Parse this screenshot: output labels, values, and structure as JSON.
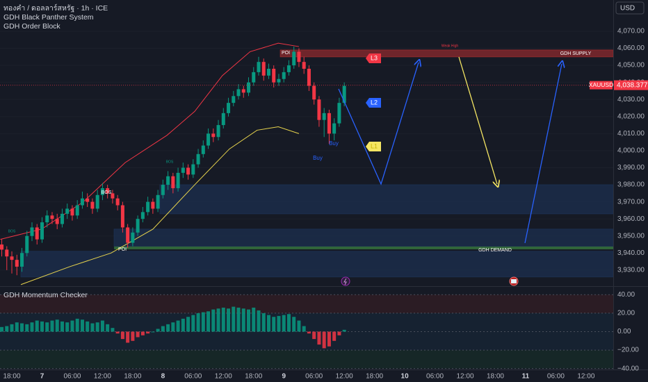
{
  "chart_data": [
    {
      "type": "candlestick",
      "title": "ทองคำ / ดอลลาร์สหรัฐ · 1h · ICE",
      "indicators": [
        "GDH Black Panther System",
        "GDH Order Block"
      ],
      "currency": "USD",
      "symbol": "XAUUSD",
      "x": [
        -2,
        -1,
        0,
        1,
        2,
        3,
        4,
        5,
        6,
        7,
        8,
        9,
        10,
        11,
        12,
        13,
        14,
        15,
        16,
        17,
        18,
        19,
        20,
        21,
        22,
        23,
        24,
        25,
        26,
        27,
        28,
        29,
        30,
        31,
        32,
        33,
        34,
        35,
        36,
        37,
        38,
        39,
        40,
        41,
        42,
        43,
        44,
        45,
        46,
        47,
        48,
        49,
        50,
        51,
        52,
        53,
        54,
        55,
        56,
        57,
        58,
        59,
        60,
        61,
        62,
        63,
        64,
        65,
        66
      ],
      "open": [
        3945,
        3942,
        3938,
        3936,
        3932,
        3940,
        3950,
        3955,
        3948,
        3958,
        3962,
        3960,
        3957,
        3963,
        3966,
        3962,
        3968,
        3972,
        3970,
        3966,
        3974,
        3978,
        3975,
        3972,
        3968,
        3955,
        3946,
        3952,
        3960,
        3964,
        3970,
        3966,
        3974,
        3980,
        3985,
        3978,
        3987,
        3990,
        3986,
        3992,
        3998,
        4003,
        4010,
        4008,
        4015,
        4022,
        4028,
        4032,
        4036,
        4034,
        4040,
        4046,
        4052,
        4044,
        4048,
        4040,
        4042,
        4046,
        4050,
        4058,
        4052,
        4048,
        4038,
        4030,
        4018,
        4022,
        4010,
        4016,
        4028
      ],
      "high": [
        3948,
        3944,
        3941,
        3939,
        3943,
        3953,
        3958,
        3957,
        3961,
        3965,
        3964,
        3963,
        3966,
        3969,
        3968,
        3971,
        3976,
        3975,
        3972,
        3977,
        3981,
        3980,
        3977,
        3974,
        3970,
        3957,
        3955,
        3962,
        3967,
        3973,
        3972,
        3977,
        3983,
        3988,
        3987,
        3990,
        3993,
        3992,
        3995,
        4001,
        4006,
        4013,
        4013,
        4018,
        4025,
        4031,
        4035,
        4039,
        4038,
        4043,
        4049,
        4055,
        4054,
        4051,
        4050,
        4045,
        4049,
        4053,
        4061,
        4060,
        4055,
        4050,
        4040,
        4032,
        4025,
        4024,
        4019,
        4031,
        4040
      ],
      "low": [
        3938,
        3930,
        3928,
        3927,
        3929,
        3938,
        3947,
        3945,
        3946,
        3955,
        3957,
        3954,
        3955,
        3960,
        3959,
        3960,
        3966,
        3967,
        3963,
        3964,
        3971,
        3972,
        3969,
        3965,
        3952,
        3943,
        3944,
        3950,
        3958,
        3962,
        3963,
        3964,
        3972,
        3977,
        3975,
        3976,
        3984,
        3983,
        3984,
        3990,
        3996,
        4001,
        4005,
        4006,
        4013,
        4020,
        4026,
        4030,
        4031,
        4032,
        4038,
        4044,
        4041,
        4042,
        4037,
        4038,
        4040,
        4044,
        4048,
        4049,
        4045,
        4035,
        4027,
        4014,
        4008,
        4004,
        4006,
        4014,
        4026
      ],
      "close": [
        3942,
        3938,
        3936,
        3932,
        3940,
        3950,
        3955,
        3948,
        3958,
        3962,
        3960,
        3957,
        3963,
        3966,
        3962,
        3968,
        3972,
        3970,
        3966,
        3974,
        3978,
        3975,
        3972,
        3968,
        3955,
        3946,
        3952,
        3960,
        3964,
        3970,
        3966,
        3974,
        3980,
        3985,
        3978,
        3987,
        3990,
        3986,
        3992,
        3998,
        4003,
        4010,
        4008,
        4015,
        4022,
        4028,
        4032,
        4036,
        4034,
        4040,
        4046,
        4052,
        4044,
        4048,
        4040,
        4042,
        4046,
        4050,
        4058,
        4052,
        4048,
        4038,
        4030,
        4018,
        4022,
        4010,
        4016,
        4028,
        4038
      ],
      "up_color": "#089981",
      "down_color": "#f23645",
      "xlim": [
        -2.35,
        119.4
      ],
      "xticks": [
        {
          "value": 0,
          "label": "18:00"
        },
        {
          "value": 6,
          "label": "7"
        },
        {
          "value": 12,
          "label": "06:00"
        },
        {
          "value": 18,
          "label": "12:00"
        },
        {
          "value": 24,
          "label": "18:00"
        },
        {
          "value": 30,
          "label": "8"
        },
        {
          "value": 36,
          "label": "06:00"
        },
        {
          "value": 42,
          "label": "12:00"
        },
        {
          "value": 48,
          "label": "18:00"
        },
        {
          "value": 54,
          "label": "9"
        },
        {
          "value": 60,
          "label": "06:00"
        },
        {
          "value": 66,
          "label": "12:00"
        },
        {
          "value": 72,
          "label": "18:00"
        },
        {
          "value": 78,
          "label": "10"
        },
        {
          "value": 84,
          "label": "06:00"
        },
        {
          "value": 90,
          "label": "12:00"
        },
        {
          "value": 96,
          "label": "18:00"
        },
        {
          "value": 102,
          "label": "11"
        },
        {
          "value": 108,
          "label": "06:00"
        },
        {
          "value": 114,
          "label": "12:00"
        }
      ],
      "ylim": [
        3921.4,
        4088.3
      ],
      "yticks": [
        {
          "value": 3930,
          "label": "3,930.00"
        },
        {
          "value": 3940,
          "label": "3,940.00"
        },
        {
          "value": 3950,
          "label": "3,950.00"
        },
        {
          "value": 3960,
          "label": "3,960.00"
        },
        {
          "value": 3970,
          "label": "3,970.00"
        },
        {
          "value": 3980,
          "label": "3,980.00"
        },
        {
          "value": 3990,
          "label": "3,990.00"
        },
        {
          "value": 4000,
          "label": "4,000.00"
        },
        {
          "value": 4010,
          "label": "4,010.00"
        },
        {
          "value": 4020,
          "label": "4,020.00"
        },
        {
          "value": 4030,
          "label": "4,030.00"
        },
        {
          "value": 4040,
          "label": "4,040.00"
        },
        {
          "value": 4050,
          "label": "4,050.00"
        },
        {
          "value": 4060,
          "label": "4,060.00"
        },
        {
          "value": 4070,
          "label": "4,070.00"
        }
      ],
      "grid": true,
      "last_price": {
        "value": 4038.377,
        "label": "4,038.377"
      },
      "bands": [
        {
          "color": "#f23645",
          "x": [
            -2.3,
            5.9,
            14.2,
            22.5,
            30.8,
            36.3,
            41.8,
            47.3,
            52.9,
            57
          ],
          "values": [
            3948,
            3954,
            3970,
            3993,
            4009,
            4023,
            4044,
            4058,
            4063,
            4061
          ]
        },
        {
          "color": "#e8d44d",
          "x": [
            1.8,
            11.5,
            19.7,
            28,
            36.3,
            43.2,
            48.7,
            52.9,
            57
          ],
          "values": [
            3921.5,
            3932,
            3940,
            3954,
            3980,
            4001,
            4012,
            4014,
            4010
          ]
        }
      ],
      "zones": [
        {
          "from": 29.4,
          "top": 3980,
          "bottom": 3963,
          "color": "#1c2f4f"
        },
        {
          "from": 20.3,
          "top": 3954,
          "bottom": 3944,
          "color": "#1c2f4f"
        },
        {
          "from": 1.8,
          "top": 3941,
          "bottom": 3926,
          "color": "#1c2f4f"
        },
        {
          "from": 53.3,
          "top": 4059,
          "bottom": 4055,
          "color": "#8e2a2d"
        }
      ],
      "demand_line": {
        "from": 20.3,
        "value": 3943,
        "color": "#4caf50"
      },
      "annotations": [
        "POI",
        "POI",
        "GDH SUPPLY",
        "GDH DEMAND",
        "Weak High",
        "BOS",
        "BOS",
        "BOS",
        "Buy",
        "Buy",
        "L3",
        "L2",
        "L1"
      ]
    },
    {
      "type": "bar",
      "title": "GDH Momentum Checker",
      "x": [
        -2,
        -1,
        0,
        1,
        2,
        3,
        4,
        5,
        6,
        7,
        8,
        9,
        10,
        11,
        12,
        13,
        14,
        15,
        16,
        17,
        18,
        19,
        20,
        21,
        22,
        23,
        24,
        25,
        26,
        27,
        28,
        29,
        30,
        31,
        32,
        33,
        34,
        35,
        36,
        37,
        38,
        39,
        40,
        41,
        42,
        43,
        44,
        45,
        46,
        47,
        48,
        49,
        50,
        51,
        52,
        53,
        54,
        55,
        56,
        57,
        58,
        59,
        60,
        61,
        62,
        63,
        64,
        65,
        66
      ],
      "values": [
        5,
        6,
        8,
        10,
        9,
        8,
        10,
        12,
        11,
        10,
        12,
        13,
        11,
        10,
        12,
        14,
        13,
        11,
        9,
        10,
        12,
        8,
        4,
        -2,
        -8,
        -12,
        -10,
        -6,
        -4,
        -2,
        0,
        3,
        6,
        8,
        10,
        12,
        14,
        16,
        18,
        20,
        21,
        22,
        24,
        25,
        26,
        25,
        27,
        26,
        25,
        24,
        26,
        23,
        20,
        18,
        16,
        17,
        18,
        19,
        16,
        12,
        6,
        -2,
        -8,
        -14,
        -18,
        -16,
        -10,
        -4,
        2
      ],
      "up_color": "#089981",
      "down_color": "#f23645",
      "xlim": [
        -2.35,
        119.4
      ],
      "ylim": [
        -41,
        47
      ],
      "yticks": [
        {
          "value": 40,
          "label": "40.00"
        },
        {
          "value": 20,
          "label": "20.00"
        },
        {
          "value": 0,
          "label": "0.00"
        },
        {
          "value": -20,
          "label": "−20.00"
        },
        {
          "value": -40,
          "label": "−40.00"
        }
      ]
    }
  ]
}
